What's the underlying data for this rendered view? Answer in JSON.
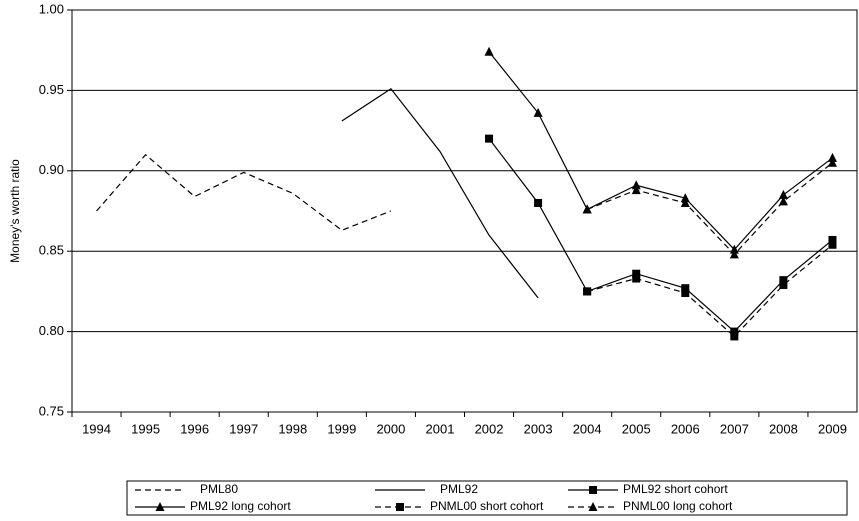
{
  "chart_data": {
    "type": "line",
    "y_label": "Money's worth ratio",
    "categories": [
      "1994",
      "1995",
      "1996",
      "1997",
      "1998",
      "1999",
      "2000",
      "2001",
      "2002",
      "2003",
      "2004",
      "2005",
      "2006",
      "2007",
      "2008",
      "2009"
    ],
    "ylim": [
      0.75,
      1.0
    ],
    "yticks": [
      {
        "value": 0.75,
        "label": "0.75"
      },
      {
        "value": 0.8,
        "label": "0.80"
      },
      {
        "value": 0.85,
        "label": "0.85"
      },
      {
        "value": 0.9,
        "label": "0.90"
      },
      {
        "value": 0.95,
        "label": "0.95"
      },
      {
        "value": 1.0,
        "label": "1.00"
      }
    ],
    "grid": true,
    "legend": "bottom",
    "series": [
      {
        "name": "PML80",
        "color": "#000000",
        "dash": true,
        "marker": "none",
        "values": [
          0.875,
          0.91,
          0.884,
          0.899,
          0.886,
          0.863,
          0.875,
          null,
          null,
          null,
          null,
          null,
          null,
          null,
          null,
          null
        ]
      },
      {
        "name": "PML92",
        "color": "#000000",
        "dash": false,
        "marker": "none",
        "values": [
          null,
          null,
          null,
          null,
          null,
          0.931,
          0.951,
          0.912,
          0.86,
          0.821,
          null,
          null,
          null,
          null,
          null,
          null
        ]
      },
      {
        "name": "PML92 short cohort",
        "color": "#000000",
        "dash": false,
        "marker": "square",
        "values": [
          null,
          null,
          null,
          null,
          null,
          null,
          null,
          null,
          0.92,
          0.88,
          0.825,
          0.836,
          0.827,
          0.8,
          0.832,
          0.857
        ]
      },
      {
        "name": "PML92 long cohort",
        "color": "#000000",
        "dash": false,
        "marker": "triangle",
        "values": [
          null,
          null,
          null,
          null,
          null,
          null,
          null,
          null,
          0.974,
          0.936,
          0.876,
          0.891,
          0.883,
          0.851,
          0.885,
          0.908
        ]
      },
      {
        "name": "PNML00 short cohort",
        "color": "#000000",
        "dash": true,
        "marker": "square",
        "values": [
          null,
          null,
          null,
          null,
          null,
          null,
          null,
          null,
          null,
          null,
          0.825,
          0.833,
          0.824,
          0.797,
          0.829,
          0.854
        ]
      },
      {
        "name": "PNML00 long cohort",
        "color": "#000000",
        "dash": true,
        "marker": "triangle",
        "values": [
          null,
          null,
          null,
          null,
          null,
          null,
          null,
          null,
          null,
          null,
          0.876,
          0.888,
          0.88,
          0.848,
          0.881,
          0.905
        ]
      }
    ]
  }
}
